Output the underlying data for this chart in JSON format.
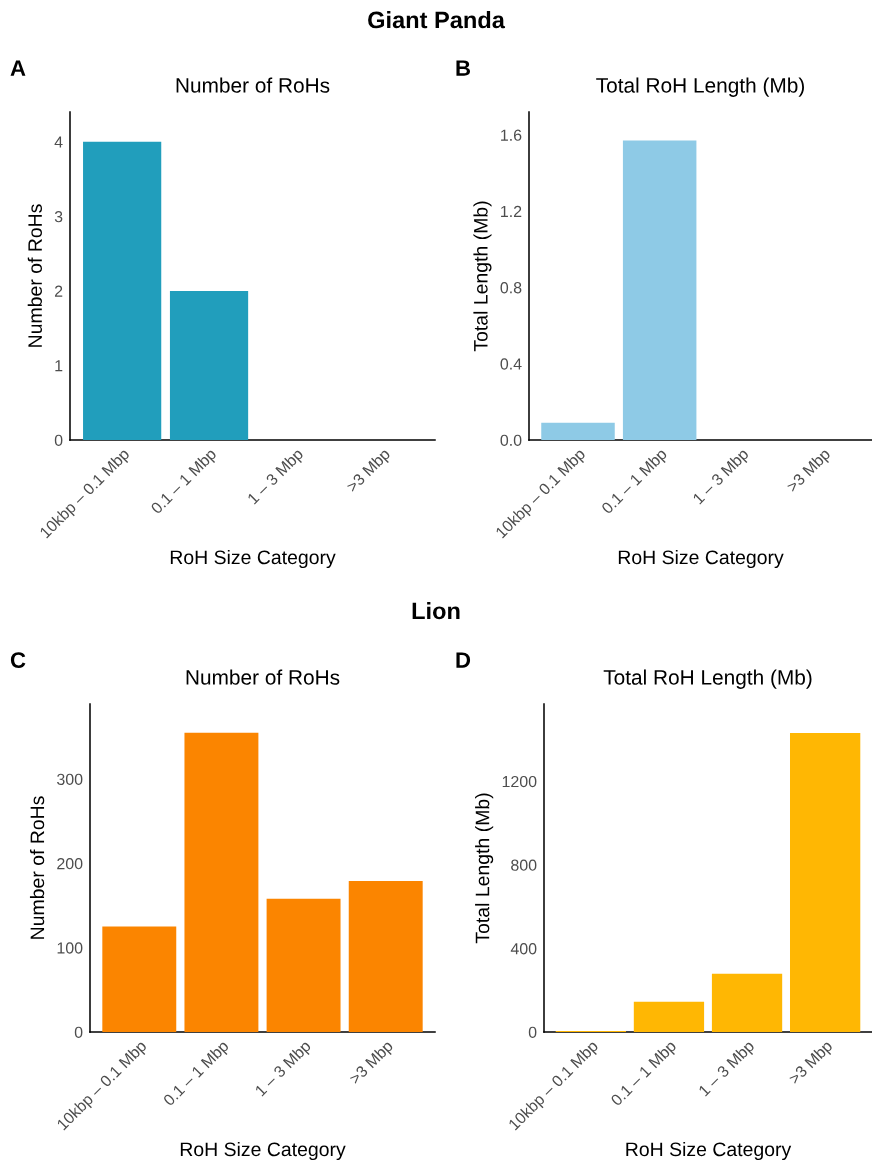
{
  "chart_data": [
    {
      "type": "bar",
      "title": "Number of RoHs",
      "xlabel": "RoH Size Category",
      "ylabel": "Number of RoHs",
      "categories": [
        "10kbp – 0.1 Mbp",
        "0.1 – 1 Mbp",
        "1 – 3 Mbp",
        ">3 Mbp"
      ],
      "values": [
        4,
        2,
        0,
        0
      ],
      "color": "#219ebc",
      "ylim": [
        0,
        4.4
      ],
      "yticks": [
        0,
        1,
        2,
        3,
        4
      ],
      "grid": false,
      "annotations": [
        "Giant Panda",
        "A"
      ]
    },
    {
      "type": "bar",
      "title": "Total RoH Length (Mb)",
      "xlabel": "RoH Size Category",
      "ylabel": "Total Length (Mb)",
      "categories": [
        "10kbp – 0.1 Mbp",
        "0.1 – 1 Mbp",
        "1 – 3 Mbp",
        ">3 Mbp"
      ],
      "values": [
        0.09,
        1.57,
        0,
        0
      ],
      "color": "#8ecae6",
      "ylim": [
        0,
        1.72
      ],
      "yticks": [
        {
          "value": 0,
          "label": "0.0"
        },
        0.4,
        0.8,
        1.2,
        1.6
      ],
      "grid": false,
      "annotations": [
        "B"
      ]
    },
    {
      "type": "bar",
      "title": "Number of RoHs",
      "xlabel": "RoH Size Category",
      "ylabel": "Number of RoHs",
      "categories": [
        "10kbp – 0.1 Mbp",
        "0.1 – 1 Mbp",
        "1 – 3 Mbp",
        ">3 Mbp"
      ],
      "values": [
        125,
        355,
        158,
        179
      ],
      "color": "#fb8500",
      "ylim": [
        0,
        389
      ],
      "yticks": [
        0,
        100,
        200,
        300
      ],
      "grid": false,
      "annotations": [
        "Lion",
        "C"
      ]
    },
    {
      "type": "bar",
      "title": "Total RoH Length (Mb)",
      "xlabel": "RoH Size Category",
      "ylabel": "Total Length (Mb)",
      "categories": [
        "10kbp – 0.1 Mbp",
        "0.1 – 1 Mbp",
        "1 – 3 Mbp",
        ">3 Mbp"
      ],
      "values": [
        5,
        145,
        279,
        1431
      ],
      "color": "#ffb703",
      "ylim": [
        0,
        1570
      ],
      "yticks": [
        0,
        400,
        800,
        1200
      ],
      "grid": false,
      "annotations": [
        "D"
      ]
    }
  ]
}
